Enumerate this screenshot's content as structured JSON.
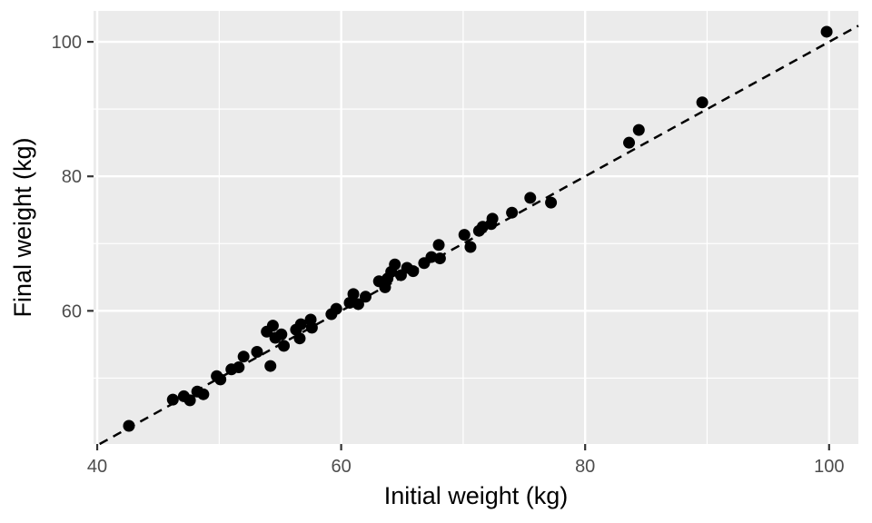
{
  "figure": {
    "kind": "ggplot-style scatter plot",
    "background_color": "#FFFFFF"
  },
  "chart_data": {
    "type": "scatter",
    "title": "",
    "xlabel": "Initial weight (kg)",
    "ylabel": "Final weight (kg)",
    "xlim": [
      39.7,
      102.4
    ],
    "ylim": [
      40.2,
      104.6
    ],
    "x_ticks": [
      40,
      60,
      80,
      100
    ],
    "y_ticks": [
      60,
      80,
      100
    ],
    "x_minor_ticks": [
      50,
      70,
      90
    ],
    "y_minor_ticks": [
      50,
      70,
      90
    ],
    "grid": "white major and minor gridlines on grey panel",
    "legend": "none",
    "panel_bg": "#EBEBEB",
    "grid_color": "#FFFFFF",
    "point_color": "#000000",
    "point_radius": 6.5,
    "tick_color": "#333333",
    "tick_label_color": "#4D4D4D",
    "reference_line": {
      "description": "dashed identity line y = x",
      "style": "dashed",
      "color": "#000000",
      "slope": 1,
      "intercept": 0
    },
    "points": [
      [
        42.6,
        42.9
      ],
      [
        46.2,
        46.8
      ],
      [
        47.1,
        47.3
      ],
      [
        47.6,
        46.7
      ],
      [
        48.2,
        48.0
      ],
      [
        48.7,
        47.6
      ],
      [
        49.8,
        50.3
      ],
      [
        50.1,
        49.8
      ],
      [
        51.0,
        51.3
      ],
      [
        51.6,
        51.6
      ],
      [
        52.0,
        53.2
      ],
      [
        53.1,
        53.9
      ],
      [
        53.9,
        56.9
      ],
      [
        54.2,
        51.8
      ],
      [
        54.4,
        57.8
      ],
      [
        54.6,
        56.0
      ],
      [
        55.1,
        56.5
      ],
      [
        55.3,
        54.8
      ],
      [
        56.3,
        57.2
      ],
      [
        56.7,
        58.0
      ],
      [
        56.6,
        55.9
      ],
      [
        57.5,
        58.7
      ],
      [
        57.6,
        57.5
      ],
      [
        59.2,
        59.5
      ],
      [
        59.6,
        60.3
      ],
      [
        60.7,
        61.2
      ],
      [
        61.0,
        62.5
      ],
      [
        61.4,
        61.0
      ],
      [
        62.0,
        62.1
      ],
      [
        63.1,
        64.4
      ],
      [
        63.6,
        63.5
      ],
      [
        63.8,
        64.8
      ],
      [
        64.1,
        65.8
      ],
      [
        64.4,
        66.9
      ],
      [
        64.9,
        65.3
      ],
      [
        65.4,
        66.4
      ],
      [
        65.9,
        65.9
      ],
      [
        66.8,
        67.1
      ],
      [
        67.4,
        68.0
      ],
      [
        68.1,
        67.8
      ],
      [
        68.0,
        69.8
      ],
      [
        70.1,
        71.3
      ],
      [
        70.6,
        69.5
      ],
      [
        71.3,
        71.9
      ],
      [
        71.6,
        72.5
      ],
      [
        72.3,
        72.9
      ],
      [
        72.4,
        73.7
      ],
      [
        74.0,
        74.6
      ],
      [
        75.5,
        76.8
      ],
      [
        77.2,
        76.1
      ],
      [
        83.6,
        85.0
      ],
      [
        84.4,
        86.9
      ],
      [
        89.6,
        91.0
      ],
      [
        99.8,
        101.5
      ]
    ]
  }
}
